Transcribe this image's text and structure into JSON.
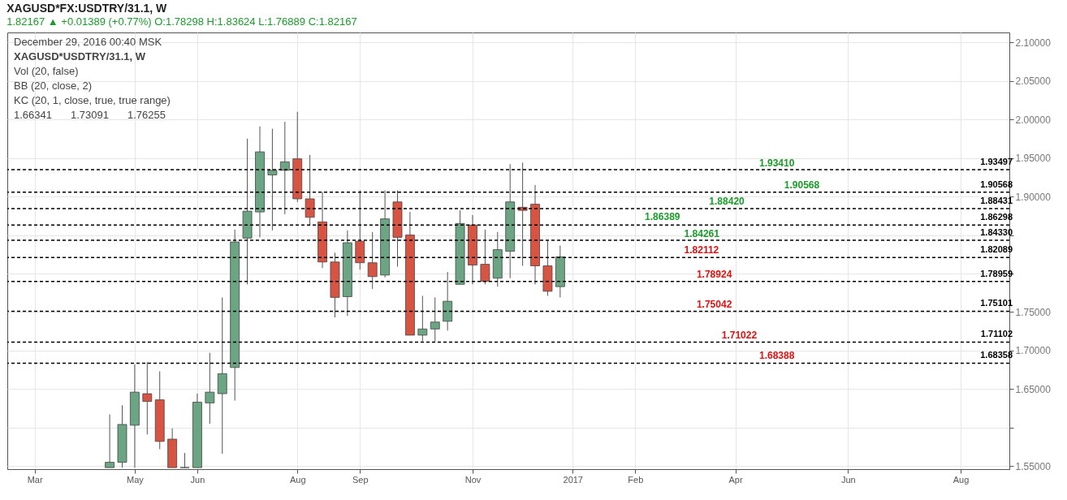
{
  "chart_data": {
    "type": "candlestick",
    "title": "XAGUSD*FX:USDTRY/31.1, W",
    "subtitle": "1.82167 ▲ +0.01389 (+0.77%)  O:1.78298  H:1.83624  L:1.76889  C:1.82167",
    "x": [
      "2016-04-18",
      "2016-04-25",
      "2016-05-02",
      "2016-05-09",
      "2016-05-16",
      "2016-05-23",
      "2016-05-30",
      "2016-06-06",
      "2016-06-13",
      "2016-06-20",
      "2016-06-27",
      "2016-07-04",
      "2016-07-11",
      "2016-07-18",
      "2016-07-25",
      "2016-08-01",
      "2016-08-08",
      "2016-08-15",
      "2016-08-22",
      "2016-08-29",
      "2016-09-05",
      "2016-09-12",
      "2016-09-19",
      "2016-09-26",
      "2016-10-03",
      "2016-10-10",
      "2016-10-17",
      "2016-10-24",
      "2016-10-31",
      "2016-11-07",
      "2016-11-14",
      "2016-11-21",
      "2016-11-28",
      "2016-12-05",
      "2016-12-12",
      "2016-12-19",
      "2016-12-26"
    ],
    "ohlc": [
      [
        1.548,
        1.617,
        1.548,
        1.555
      ],
      [
        1.555,
        1.629,
        1.548,
        1.604
      ],
      [
        1.603,
        1.682,
        1.548,
        1.646
      ],
      [
        1.644,
        1.685,
        1.591,
        1.634
      ],
      [
        1.636,
        1.673,
        1.572,
        1.582
      ],
      [
        1.585,
        1.599,
        1.548,
        1.548
      ],
      [
        1.548,
        1.567,
        1.548,
        1.548
      ],
      [
        1.548,
        1.644,
        1.548,
        1.633
      ],
      [
        1.632,
        1.697,
        1.605,
        1.646
      ],
      [
        1.644,
        1.769,
        1.566,
        1.67
      ],
      [
        1.678,
        1.857,
        1.635,
        1.841
      ],
      [
        1.846,
        1.975,
        1.786,
        1.881
      ],
      [
        1.88,
        1.991,
        1.847,
        1.958
      ],
      [
        1.928,
        1.988,
        1.856,
        1.934
      ],
      [
        1.934,
        1.997,
        1.877,
        1.945
      ],
      [
        1.949,
        2.01,
        1.893,
        1.897
      ],
      [
        1.897,
        1.954,
        1.862,
        1.873
      ],
      [
        1.867,
        1.906,
        1.807,
        1.815
      ],
      [
        1.815,
        1.827,
        1.743,
        1.769
      ],
      [
        1.77,
        1.856,
        1.745,
        1.84
      ],
      [
        1.842,
        1.908,
        1.805,
        1.814
      ],
      [
        1.814,
        1.854,
        1.78,
        1.796
      ],
      [
        1.798,
        1.908,
        1.795,
        1.871
      ],
      [
        1.893,
        1.908,
        1.809,
        1.847
      ],
      [
        1.85,
        1.88,
        1.72,
        1.72
      ],
      [
        1.72,
        1.771,
        1.712,
        1.728
      ],
      [
        1.728,
        1.769,
        1.712,
        1.737
      ],
      [
        1.738,
        1.802,
        1.726,
        1.764
      ],
      [
        1.786,
        1.882,
        1.786,
        1.865
      ],
      [
        1.863,
        1.876,
        1.786,
        1.811
      ],
      [
        1.812,
        1.857,
        1.786,
        1.79
      ],
      [
        1.794,
        1.854,
        1.783,
        1.831
      ],
      [
        1.829,
        1.942,
        1.794,
        1.893
      ],
      [
        1.886,
        1.944,
        1.81,
        1.882
      ],
      [
        1.89,
        1.915,
        1.786,
        1.81
      ],
      [
        1.81,
        1.843,
        1.771,
        1.777
      ],
      [
        1.78298,
        1.83624,
        1.76889,
        1.82167
      ]
    ],
    "xlim": [
      "2016-02-23",
      "2017-09-01"
    ],
    "xticks": [
      {
        "value": "2016-03-07",
        "label": "Mar"
      },
      {
        "value": "2016-05-02",
        "label": "May"
      },
      {
        "value": "2016-06-06",
        "label": "Jun"
      },
      {
        "value": "2016-08-01",
        "label": "Aug"
      },
      {
        "value": "2016-09-05",
        "label": "Sep"
      },
      {
        "value": "2016-11-07",
        "label": "Nov"
      },
      {
        "value": "2017-01-02",
        "label": "2017"
      },
      {
        "value": "2017-02-06",
        "label": "Feb"
      },
      {
        "value": "2017-04-03",
        "label": "Apr"
      },
      {
        "value": "2017-06-05",
        "label": "Jun"
      },
      {
        "value": "2017-08-07",
        "label": "Aug"
      }
    ],
    "ylim": [
      1.546,
      2.113
    ],
    "yticks": [
      {
        "value": 1.55,
        "label": "1.55000"
      },
      {
        "value": 1.6,
        "label": null
      },
      {
        "value": 1.65,
        "label": "1.65000"
      },
      {
        "value": 1.7,
        "label": "1.70000"
      },
      {
        "value": 1.75,
        "label": "1.75000"
      },
      {
        "value": 1.8,
        "label": null
      },
      {
        "value": 1.85,
        "label": null
      },
      {
        "value": 1.9,
        "label": "1.90000"
      },
      {
        "value": 1.95,
        "label": "1.95000"
      },
      {
        "value": 2.0,
        "label": "2.00000"
      },
      {
        "value": 2.05,
        "label": "2.05000"
      },
      {
        "value": 2.1,
        "label": "2.10000"
      }
    ],
    "grid": true,
    "ref_lines": [
      {
        "axis": "y",
        "value": 1.93497,
        "label": "1.93497",
        "color": "#000000",
        "line_style": "dashed"
      },
      {
        "axis": "y",
        "value": 1.90568,
        "label": "1.90568",
        "color": "#000000",
        "line_style": "dashed"
      },
      {
        "axis": "y",
        "value": 1.88431,
        "label": "1.88431",
        "color": "#000000",
        "line_style": "dashed"
      },
      {
        "axis": "y",
        "value": 1.86298,
        "label": "1.86298",
        "color": "#000000",
        "line_style": "dashed"
      },
      {
        "axis": "y",
        "value": 1.8433,
        "label": "1.84330",
        "color": "#000000",
        "line_style": "dashed"
      },
      {
        "axis": "y",
        "value": 1.82089,
        "label": "1.82089",
        "color": "#000000",
        "line_style": "dashed"
      },
      {
        "axis": "y",
        "value": 1.78959,
        "label": "1.78959",
        "color": "#000000",
        "line_style": "dashed"
      },
      {
        "axis": "y",
        "value": 1.75101,
        "label": "1.75101",
        "color": "#000000",
        "line_style": "dashed"
      },
      {
        "axis": "y",
        "value": 1.71102,
        "label": "1.71102",
        "color": "#000000",
        "line_style": "dashed"
      },
      {
        "axis": "y",
        "value": 1.68358,
        "label": "1.68358",
        "color": "#000000",
        "line_style": "dashed"
      }
    ],
    "annotations": [
      "December 29, 2016 00:40 MSK",
      "XAGUSD*USDTRY/31.1, W",
      "Vol (20, false)",
      "BB (20, close, 2)",
      "KC (20, 1, close, true, true range)",
      {
        "text": "1.93410",
        "x": "2017-04-10",
        "y": 1.9341
      },
      {
        "text": "1.90568",
        "x": "2017-04-24",
        "y": 1.90568
      },
      {
        "text": "1.88420",
        "x": "2017-03-13",
        "y": 1.8842
      },
      {
        "text": "1.86389",
        "x": "2017-02-05",
        "y": 1.86389
      },
      {
        "text": "1.84261",
        "x": "2017-02-27",
        "y": 1.84261
      },
      {
        "text": "1.82112",
        "x": "2017-02-27",
        "y": 1.82112
      },
      {
        "text": "1.78924",
        "x": "2017-03-06",
        "y": 1.78924
      },
      {
        "text": "1.75042",
        "x": "2017-03-06",
        "y": 1.75042
      },
      {
        "text": "1.71022",
        "x": "2017-03-20",
        "y": 1.71022
      },
      {
        "text": "1.68388",
        "x": "2017-04-10",
        "y": 1.68388
      },
      "1.66341",
      "1.73091",
      "1.76255"
    ]
  }
}
